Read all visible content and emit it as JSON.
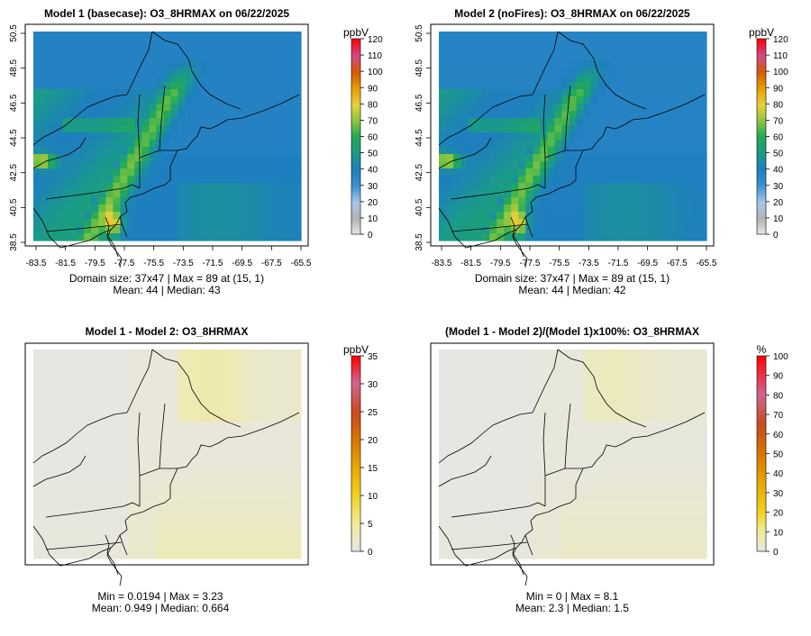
{
  "panels": [
    {
      "title": "Model 1 (basecase): O3_8HRMAX on 06/22/2025",
      "field": "model1",
      "y_ticks": [
        "38.5",
        "40.5",
        "42.5",
        "44.5",
        "46.5",
        "48.5",
        "50.5"
      ],
      "x_ticks": [
        "-83.5",
        "-81.5",
        "-79.5",
        "-77.5",
        "-75.5",
        "-73.5",
        "-71.5",
        "-69.5",
        "-67.5",
        "-65.5"
      ],
      "stat_line1": "Domain size: 37x47 | Max = 89 at (15, 1)",
      "stat_line2": "Mean: 44 |  Median: 43",
      "colorbar": {
        "unit": "ppbV",
        "ticks": [
          "0",
          "10",
          "20",
          "30",
          "40",
          "50",
          "60",
          "70",
          "80",
          "90",
          "100",
          "110",
          "120"
        ],
        "max": 120
      }
    },
    {
      "title": "Model 2 (noFires): O3_8HRMAX on 06/22/2025",
      "field": "model2",
      "y_ticks": [
        "38.5",
        "40.5",
        "42.5",
        "44.5",
        "46.5",
        "48.5",
        "50.5"
      ],
      "x_ticks": [
        "-83.5",
        "-81.5",
        "-79.5",
        "-77.5",
        "-75.5",
        "-73.5",
        "-71.5",
        "-69.5",
        "-67.5",
        "-65.5"
      ],
      "stat_line1": "Domain size: 37x47 | Max = 89 at (15, 1)",
      "stat_line2": "Mean: 44 |  Median: 42",
      "colorbar": {
        "unit": "ppbV",
        "ticks": [
          "0",
          "10",
          "20",
          "30",
          "40",
          "50",
          "60",
          "70",
          "80",
          "90",
          "100",
          "110",
          "120"
        ],
        "max": 120
      }
    },
    {
      "title": "Model 1 - Model 2: O3_8HRMAX",
      "field": "diff",
      "y_ticks": [],
      "x_ticks": [],
      "stat_line1": "Min = 0.0194 | Max = 3.23",
      "stat_line2": "Mean: 0.949 |  Median: 0.664",
      "colorbar": {
        "unit": "ppbV",
        "ticks": [
          "0",
          "5",
          "10",
          "15",
          "20",
          "25",
          "30",
          "35"
        ],
        "max": 35
      }
    },
    {
      "title": "(Model 1 - Model 2)/(Model 1)x100%: O3_8HRMAX",
      "field": "pct",
      "y_ticks": [],
      "x_ticks": [],
      "stat_line1": "Min = 0 | Max = 8.1",
      "stat_line2": "Mean: 2.3 |  Median: 1.5",
      "colorbar": {
        "unit": "%",
        "ticks": [
          "0",
          "10",
          "20",
          "30",
          "40",
          "50",
          "60",
          "70",
          "80",
          "90",
          "100"
        ],
        "max": 100
      }
    }
  ],
  "colors": {
    "scale": [
      "#e6e6e6",
      "#b3b3b3",
      "#a8c8e8",
      "#3a8fce",
      "#1e7fbf",
      "#1a9a8a",
      "#22aa55",
      "#8cc63f",
      "#e8d23a",
      "#e69a00",
      "#d45a00",
      "#d04a8a",
      "#ff0000"
    ],
    "diff_scale": [
      "#e6e6e6",
      "#f1ec9a",
      "#f2d11f",
      "#e8a800",
      "#d97400",
      "#c94a1e",
      "#d0668e",
      "#ff0000"
    ],
    "map_border": "#000000"
  }
}
